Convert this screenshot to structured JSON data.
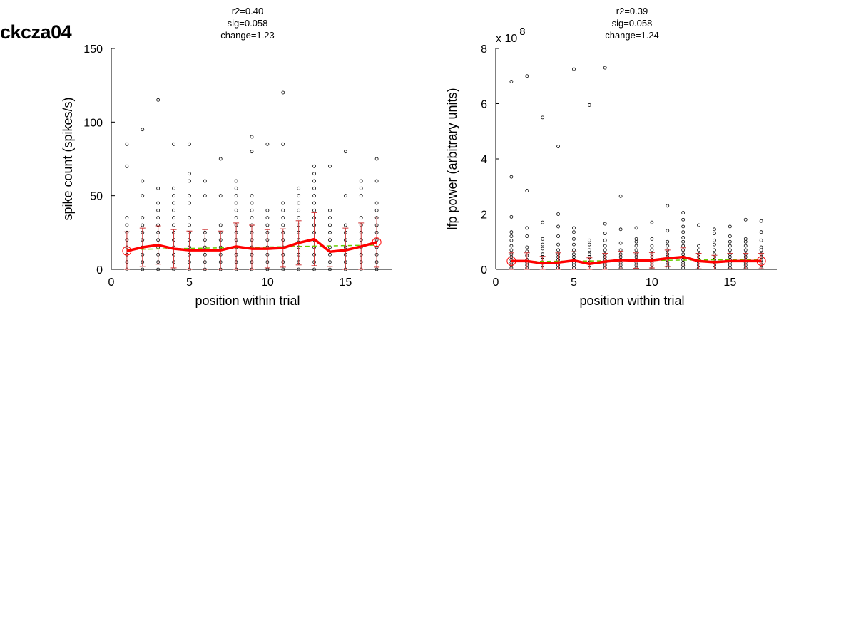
{
  "figure": {
    "title": "ckcza04"
  },
  "chart_data": [
    {
      "type": "scatter",
      "stats": [
        "r2=0.40",
        "sig=0.058",
        "change=1.23"
      ],
      "xlabel": "position within trial",
      "ylabel": "spike count (spikes/s)",
      "xlim": [
        0,
        18
      ],
      "ylim": [
        0,
        150
      ],
      "xticks": [
        0,
        5,
        10,
        15
      ],
      "yticks": [
        0,
        50,
        100,
        150
      ],
      "exponent_label": null,
      "grid": false,
      "legend": "none",
      "points": [
        {
          "x": 1,
          "y": [
            0,
            5,
            10,
            15,
            20,
            25,
            30,
            35,
            70,
            85
          ]
        },
        {
          "x": 2,
          "y": [
            0,
            5,
            10,
            15,
            20,
            25,
            30,
            35,
            50,
            60,
            95
          ]
        },
        {
          "x": 3,
          "y": [
            0,
            5,
            10,
            15,
            20,
            25,
            30,
            35,
            40,
            45,
            55,
            115
          ]
        },
        {
          "x": 4,
          "y": [
            0,
            5,
            10,
            15,
            20,
            25,
            30,
            35,
            40,
            45,
            50,
            55,
            85
          ]
        },
        {
          "x": 5,
          "y": [
            0,
            5,
            10,
            15,
            20,
            25,
            30,
            35,
            45,
            50,
            60,
            65,
            85
          ]
        },
        {
          "x": 6,
          "y": [
            0,
            5,
            10,
            15,
            20,
            25,
            50,
            60
          ]
        },
        {
          "x": 7,
          "y": [
            0,
            5,
            10,
            15,
            20,
            25,
            30,
            50,
            75
          ]
        },
        {
          "x": 8,
          "y": [
            0,
            5,
            10,
            15,
            20,
            25,
            30,
            35,
            40,
            45,
            50,
            55,
            60
          ]
        },
        {
          "x": 9,
          "y": [
            0,
            5,
            10,
            15,
            20,
            25,
            30,
            35,
            40,
            45,
            50,
            80,
            90
          ]
        },
        {
          "x": 10,
          "y": [
            0,
            5,
            10,
            15,
            20,
            25,
            30,
            35,
            40,
            85
          ]
        },
        {
          "x": 11,
          "y": [
            0,
            5,
            10,
            15,
            20,
            25,
            30,
            35,
            40,
            45,
            85,
            120
          ]
        },
        {
          "x": 12,
          "y": [
            0,
            5,
            10,
            15,
            20,
            25,
            30,
            35,
            40,
            45,
            50,
            55
          ]
        },
        {
          "x": 13,
          "y": [
            0,
            5,
            10,
            15,
            20,
            25,
            30,
            35,
            40,
            45,
            50,
            55,
            60,
            65,
            70
          ]
        },
        {
          "x": 14,
          "y": [
            0,
            5,
            10,
            15,
            20,
            25,
            30,
            35,
            40,
            70
          ]
        },
        {
          "x": 15,
          "y": [
            0,
            5,
            10,
            15,
            20,
            25,
            30,
            50,
            80
          ]
        },
        {
          "x": 16,
          "y": [
            0,
            5,
            10,
            15,
            20,
            25,
            30,
            35,
            50,
            55,
            60
          ]
        },
        {
          "x": 17,
          "y": [
            0,
            5,
            10,
            15,
            20,
            25,
            30,
            35,
            40,
            45,
            60,
            75
          ]
        }
      ],
      "mean": [
        12.5,
        15.0,
        16.5,
        14.0,
        13.0,
        13.0,
        13.0,
        15.5,
        14.0,
        14.0,
        14.5,
        18.0,
        20.5,
        12.0,
        13.0,
        15.5,
        18.5
      ],
      "error": [
        13,
        13,
        13,
        13,
        13,
        14,
        13,
        16,
        16,
        13,
        13,
        15,
        18,
        10,
        15,
        16,
        17
      ],
      "trend": {
        "x": [
          1,
          17
        ],
        "y": [
          13.5,
          16.5
        ]
      },
      "colors": {
        "mean": "#ff0000",
        "error": "#cc3333",
        "trend": "#66cc00",
        "points": "#000000"
      }
    },
    {
      "type": "scatter",
      "stats": [
        "r2=0.39",
        "sig=0.058",
        "change=1.24"
      ],
      "xlabel": "position within trial",
      "ylabel": "lfp power (arbitrary units)",
      "xlim": [
        0,
        18
      ],
      "ylim": [
        0,
        8
      ],
      "xticks": [
        0,
        5,
        10,
        15
      ],
      "yticks": [
        0,
        2,
        4,
        6,
        8
      ],
      "exponent_label": {
        "base": "x 10",
        "exp": "8"
      },
      "grid": false,
      "legend": "none",
      "points": [
        {
          "x": 1,
          "y": [
            0.05,
            0.15,
            0.25,
            0.35,
            0.45,
            0.55,
            0.7,
            0.85,
            1.05,
            1.2,
            1.35,
            1.9,
            3.35,
            6.8
          ]
        },
        {
          "x": 2,
          "y": [
            0.05,
            0.15,
            0.25,
            0.35,
            0.5,
            0.65,
            0.8,
            1.2,
            1.5,
            2.85,
            7.0
          ]
        },
        {
          "x": 3,
          "y": [
            0.05,
            0.15,
            0.25,
            0.35,
            0.45,
            0.55,
            0.75,
            0.9,
            1.1,
            1.7,
            5.5
          ]
        },
        {
          "x": 4,
          "y": [
            0.05,
            0.15,
            0.25,
            0.35,
            0.45,
            0.55,
            0.7,
            0.9,
            1.2,
            1.55,
            2.0,
            4.45
          ]
        },
        {
          "x": 5,
          "y": [
            0.05,
            0.15,
            0.25,
            0.35,
            0.45,
            0.55,
            0.7,
            0.9,
            1.1,
            1.35,
            1.5,
            7.25
          ]
        },
        {
          "x": 6,
          "y": [
            0.05,
            0.15,
            0.25,
            0.35,
            0.45,
            0.55,
            0.7,
            0.9,
            1.05,
            5.95
          ]
        },
        {
          "x": 7,
          "y": [
            0.05,
            0.15,
            0.25,
            0.35,
            0.45,
            0.55,
            0.7,
            0.85,
            1.05,
            1.3,
            1.65,
            7.3
          ]
        },
        {
          "x": 8,
          "y": [
            0.05,
            0.15,
            0.25,
            0.35,
            0.45,
            0.55,
            0.7,
            0.95,
            1.45,
            2.65
          ]
        },
        {
          "x": 9,
          "y": [
            0.05,
            0.15,
            0.25,
            0.35,
            0.45,
            0.55,
            0.7,
            0.85,
            1.0,
            1.1,
            1.5
          ]
        },
        {
          "x": 10,
          "y": [
            0.05,
            0.15,
            0.25,
            0.35,
            0.45,
            0.55,
            0.7,
            0.85,
            1.1,
            1.7
          ]
        },
        {
          "x": 11,
          "y": [
            0.05,
            0.15,
            0.25,
            0.35,
            0.45,
            0.55,
            0.7,
            0.85,
            1.0,
            1.4,
            2.3
          ]
        },
        {
          "x": 12,
          "y": [
            0.05,
            0.15,
            0.25,
            0.35,
            0.45,
            0.55,
            0.7,
            0.85,
            1.0,
            1.15,
            1.35,
            1.55,
            1.8,
            2.05
          ]
        },
        {
          "x": 13,
          "y": [
            0.05,
            0.15,
            0.25,
            0.35,
            0.45,
            0.55,
            0.7,
            0.85,
            1.6
          ]
        },
        {
          "x": 14,
          "y": [
            0.05,
            0.15,
            0.25,
            0.35,
            0.45,
            0.55,
            0.7,
            0.9,
            1.05,
            1.3,
            1.45
          ]
        },
        {
          "x": 15,
          "y": [
            0.05,
            0.15,
            0.25,
            0.35,
            0.45,
            0.55,
            0.7,
            0.85,
            1.0,
            1.2,
            1.55
          ]
        },
        {
          "x": 16,
          "y": [
            0.05,
            0.15,
            0.25,
            0.35,
            0.45,
            0.55,
            0.7,
            0.85,
            1.0,
            1.1,
            1.8
          ]
        },
        {
          "x": 17,
          "y": [
            0.05,
            0.15,
            0.25,
            0.35,
            0.45,
            0.55,
            0.7,
            0.8,
            1.05,
            1.35,
            1.75
          ]
        }
      ],
      "mean": [
        0.3,
        0.3,
        0.22,
        0.25,
        0.32,
        0.2,
        0.28,
        0.34,
        0.32,
        0.33,
        0.4,
        0.45,
        0.3,
        0.26,
        0.3,
        0.3,
        0.3
      ],
      "error": [
        0.3,
        0.3,
        0.25,
        0.35,
        0.32,
        0.22,
        0.3,
        0.32,
        0.28,
        0.28,
        0.3,
        0.33,
        0.28,
        0.25,
        0.28,
        0.28,
        0.28
      ],
      "trend": {
        "x": [
          1,
          17
        ],
        "y": [
          0.28,
          0.36
        ]
      },
      "colors": {
        "mean": "#ff0000",
        "error": "#cc3333",
        "trend": "#66cc00",
        "points": "#000000"
      }
    }
  ]
}
